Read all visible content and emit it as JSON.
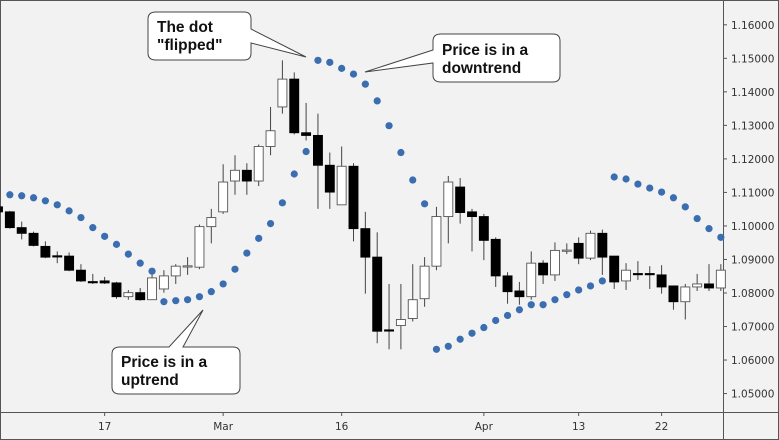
{
  "chart_data": {
    "type": "candlestick",
    "indicator": "parabolic-sar",
    "x_tick_labels": [
      {
        "index": 9,
        "label": "17"
      },
      {
        "index": 19,
        "label": "Mar"
      },
      {
        "index": 29,
        "label": "16"
      },
      {
        "index": 41,
        "label": "Apr"
      },
      {
        "index": 49,
        "label": "13"
      },
      {
        "index": 56,
        "label": "22"
      }
    ],
    "y_ticks": [
      "1.16000",
      "1.15000",
      "1.14000",
      "1.13000",
      "1.12000",
      "1.11000",
      "1.10000",
      "1.09000",
      "1.08000",
      "1.07000",
      "1.06000",
      "1.05000"
    ],
    "ylim": [
      1.0445,
      1.1674
    ],
    "y_axis_position": "right",
    "grid": false,
    "colors": {
      "background": "#f2f2f2",
      "up_candle": "#ffffff",
      "down_candle": "#000000",
      "sar_dot": "#3a6eb0",
      "axis": "#555555"
    },
    "candles": [
      [
        1.1057,
        1.1063,
        1.104,
        1.1042
      ],
      [
        1.1042,
        1.1045,
        1.0992,
        1.0995
      ],
      [
        1.0995,
        1.1013,
        1.096,
        1.0978
      ],
      [
        1.0978,
        1.0983,
        1.0939,
        1.0942
      ],
      [
        1.0939,
        1.0954,
        1.0904,
        1.0907
      ],
      [
        1.0911,
        1.0924,
        1.0889,
        1.0909
      ],
      [
        1.091,
        1.0921,
        1.0865,
        1.0868
      ],
      [
        1.0868,
        1.0886,
        1.0833,
        1.0836
      ],
      [
        1.0834,
        1.0857,
        1.0827,
        1.0832
      ],
      [
        1.0836,
        1.0848,
        1.0827,
        1.083
      ],
      [
        1.083,
        1.0833,
        1.0783,
        1.0789
      ],
      [
        1.0789,
        1.0809,
        1.078,
        1.0801
      ],
      [
        1.0801,
        1.0815,
        1.0777,
        1.078
      ],
      [
        1.078,
        1.086,
        1.078,
        1.0845
      ],
      [
        1.0812,
        1.0868,
        1.0801,
        1.0851
      ],
      [
        1.0851,
        1.0886,
        1.0827,
        1.088
      ],
      [
        1.0879,
        1.0907,
        1.0854,
        1.0881
      ],
      [
        1.0877,
        1.1004,
        1.0871,
        1.0998
      ],
      [
        1.0998,
        1.1051,
        1.0948,
        1.1025
      ],
      [
        1.1042,
        1.1184,
        1.1036,
        1.1131
      ],
      [
        1.1134,
        1.1211,
        1.1093,
        1.1166
      ],
      [
        1.1166,
        1.1187,
        1.1093,
        1.1134
      ],
      [
        1.1134,
        1.1243,
        1.1119,
        1.1237
      ],
      [
        1.1237,
        1.1355,
        1.1211,
        1.1284
      ],
      [
        1.1355,
        1.1494,
        1.1335,
        1.1438
      ],
      [
        1.1438,
        1.1458,
        1.1273,
        1.1278
      ],
      [
        1.1278,
        1.1367,
        1.1255,
        1.127
      ],
      [
        1.127,
        1.1335,
        1.1051,
        1.1181
      ],
      [
        1.1181,
        1.1219,
        1.1051,
        1.1101
      ],
      [
        1.1063,
        1.1237,
        1.1063,
        1.1178
      ],
      [
        1.1178,
        1.1187,
        1.0954,
        1.0992
      ],
      [
        1.0992,
        1.1042,
        1.0798,
        1.0907
      ],
      [
        1.0907,
        1.0981,
        1.065,
        1.0686
      ],
      [
        1.069,
        1.0827,
        1.0632,
        1.0688
      ],
      [
        1.0703,
        1.0827,
        1.0632,
        1.0721
      ],
      [
        1.0724,
        1.0886,
        1.0715,
        1.078
      ],
      [
        1.0783,
        1.0907,
        1.0759,
        1.088
      ],
      [
        1.088,
        1.1057,
        1.0868,
        1.1028
      ],
      [
        1.1028,
        1.1149,
        1.0948,
        1.1131
      ],
      [
        1.1116,
        1.1143,
        1.1007,
        1.104
      ],
      [
        1.1042,
        1.1051,
        1.0924,
        1.1028
      ],
      [
        1.1028,
        1.1036,
        1.0898,
        1.0957
      ],
      [
        1.096,
        1.0966,
        1.0818,
        1.0851
      ],
      [
        1.0851,
        1.0862,
        1.0768,
        1.0804
      ],
      [
        1.0806,
        1.0833,
        1.0765,
        1.0789
      ],
      [
        1.0789,
        1.0924,
        1.078,
        1.0889
      ],
      [
        1.0889,
        1.0898,
        1.0827,
        1.0854
      ],
      [
        1.0854,
        1.0951,
        1.0836,
        1.0927
      ],
      [
        1.0926,
        1.0948,
        1.0916,
        1.0928
      ],
      [
        1.0948,
        1.0966,
        1.0886,
        1.0904
      ],
      [
        1.0904,
        1.0986,
        1.0898,
        1.0978
      ],
      [
        1.0978,
        1.0989,
        1.0854,
        1.0907
      ],
      [
        1.091,
        1.091,
        1.0812,
        1.0833
      ],
      [
        1.0836,
        1.0889,
        1.0809,
        1.0868
      ],
      [
        1.0858,
        1.0895,
        1.0839,
        1.0856
      ],
      [
        1.0858,
        1.088,
        1.0812,
        1.0856
      ],
      [
        1.0854,
        1.0883,
        1.0798,
        1.0818
      ],
      [
        1.0821,
        1.0821,
        1.075,
        1.0774
      ],
      [
        1.0774,
        1.0827,
        1.0721,
        1.0818
      ],
      [
        1.0818,
        1.0857,
        1.0806,
        1.0827
      ],
      [
        1.0827,
        1.0886,
        1.0806,
        1.0815
      ],
      [
        1.0815,
        1.0886,
        1.0806,
        1.0868
      ]
    ],
    "sar": [
      null,
      1.1093,
      1.109,
      1.1084,
      1.1075,
      1.1063,
      1.1045,
      1.1025,
      1.0995,
      1.0969,
      1.0945,
      1.0916,
      1.0889,
      1.0865,
      1.0774,
      1.0777,
      1.078,
      1.0789,
      1.0804,
      1.0827,
      1.0871,
      1.0919,
      1.0963,
      1.1007,
      1.1069,
      1.1155,
      1.1222,
      1.1494,
      1.1488,
      1.147,
      1.1453,
      1.1423,
      1.1373,
      1.1299,
      1.1219,
      1.1137,
      1.1066,
      1.0632,
      1.0641,
      1.0662,
      1.068,
      1.0697,
      1.0718,
      1.0733,
      1.075,
      1.0765,
      1.0765,
      1.078,
      1.0795,
      1.0809,
      1.0821,
      1.0836,
      1.1146,
      1.114,
      1.1125,
      1.1113,
      1.1101,
      1.1084,
      1.1057,
      1.1022,
      1.0992,
      1.0966
    ],
    "annotations": [
      {
        "lines": [
          "The dot",
          "\"flipped\""
        ],
        "points_to_index": 27
      },
      {
        "lines": [
          "Price is in a",
          "downtrend"
        ],
        "points_to_index": 31
      },
      {
        "lines": [
          "Price is in a",
          "uptrend"
        ],
        "points_to_index": 17
      }
    ]
  }
}
